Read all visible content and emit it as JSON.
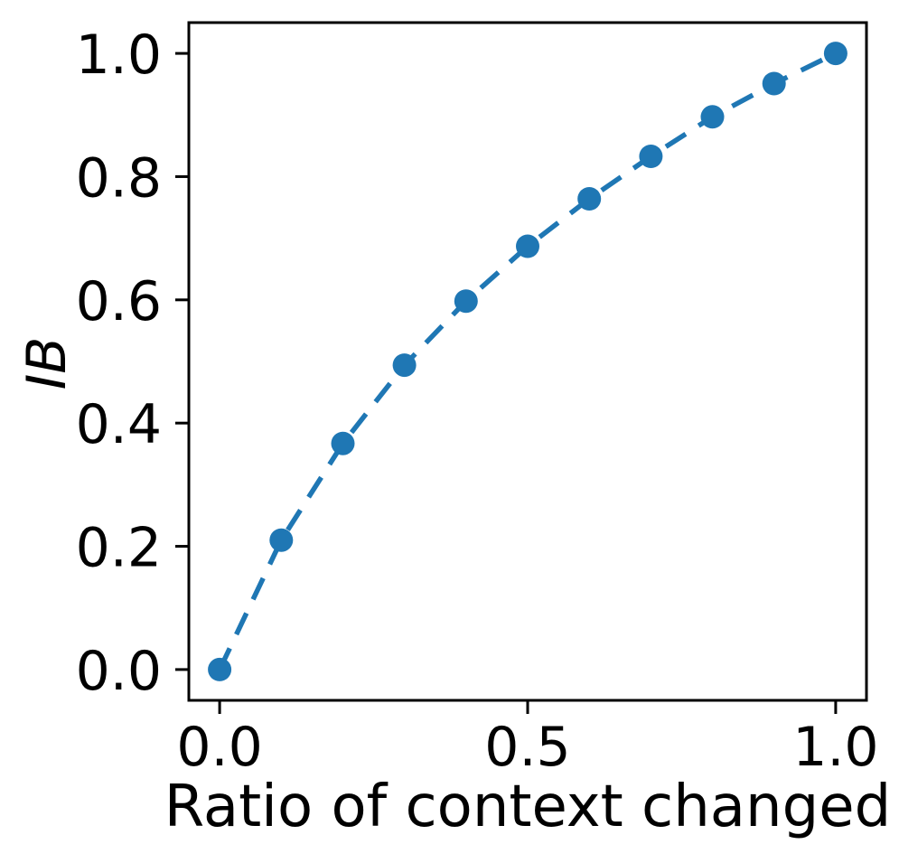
{
  "chart_data": {
    "type": "line",
    "title": "",
    "xlabel": "Ratio of context changed",
    "ylabel": "IB",
    "x": [
      0.0,
      0.1,
      0.2,
      0.3,
      0.4,
      0.5,
      0.6,
      0.7,
      0.8,
      0.9,
      1.0
    ],
    "series": [
      {
        "name": "IB",
        "values": [
          0.0,
          0.21,
          0.367,
          0.494,
          0.598,
          0.687,
          0.764,
          0.833,
          0.897,
          0.951,
          1.0
        ]
      }
    ],
    "xlim": [
      -0.05,
      1.05
    ],
    "ylim": [
      -0.05,
      1.05
    ],
    "xticks": [
      0.0,
      0.5,
      1.0
    ],
    "yticks": [
      0.0,
      0.2,
      0.4,
      0.6,
      0.8,
      1.0
    ],
    "xtick_labels": [
      "0.0",
      "0.5",
      "1.0"
    ],
    "ytick_labels": [
      "0.0",
      "0.2",
      "0.4",
      "0.6",
      "0.8",
      "1.0"
    ],
    "grid": false,
    "legend": "none",
    "line_style": "dashed",
    "marker": "circle",
    "line_color": "#1f77b4",
    "axis_color": "#000000",
    "background_color": "#ffffff"
  }
}
